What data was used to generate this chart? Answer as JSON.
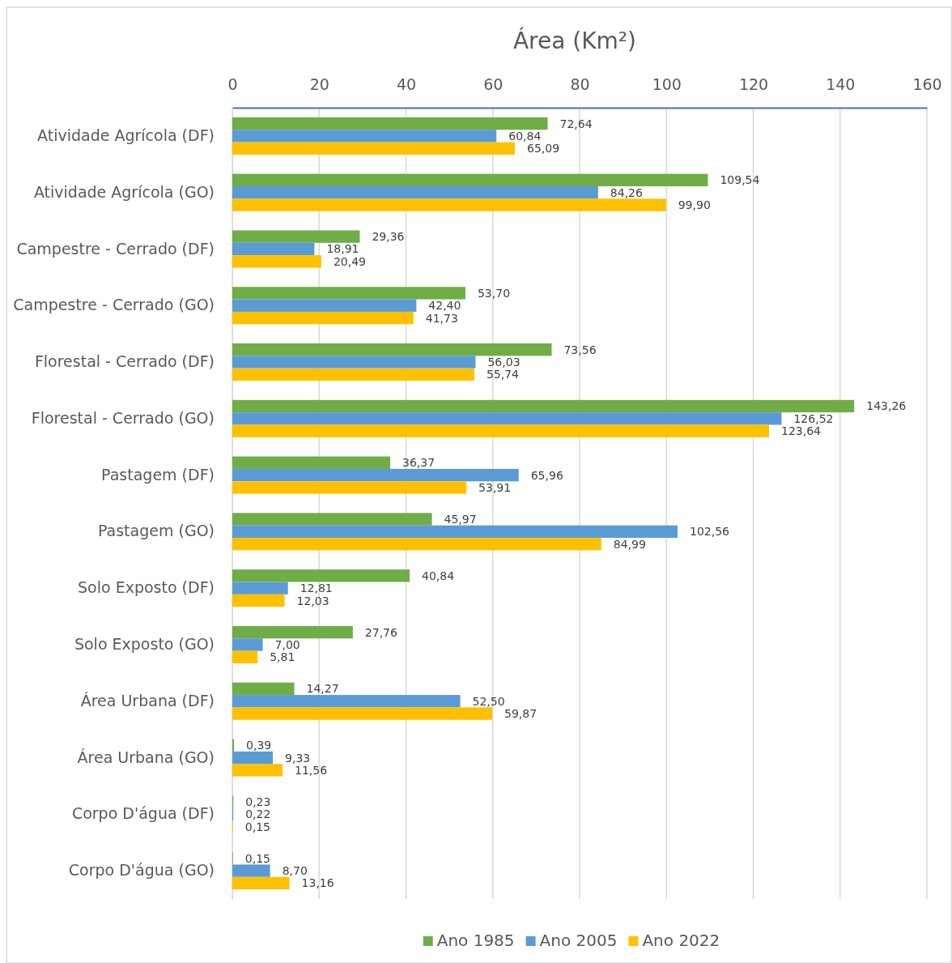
{
  "chart_data": {
    "type": "bar",
    "orientation": "horizontal",
    "title": "Área (Km²)",
    "categories": [
      "Atividade Agrícola (DF)",
      "Atividade Agrícola (GO)",
      "Campestre - Cerrado (DF)",
      "Campestre - Cerrado (GO)",
      "Florestal - Cerrado (DF)",
      "Florestal - Cerrado (GO)",
      "Pastagem (DF)",
      "Pastagem (GO)",
      "Solo Exposto (DF)",
      "Solo Exposto (GO)",
      "Área Urbana (DF)",
      "Área Urbana (GO)",
      "Corpo D'água (DF)",
      "Corpo D'água (GO)"
    ],
    "series": [
      {
        "name": "Ano 1985",
        "color": "#70ad47",
        "values": [
          72.64,
          109.54,
          29.36,
          53.7,
          73.56,
          143.26,
          36.37,
          45.97,
          40.84,
          27.76,
          14.27,
          0.39,
          0.23,
          0.15
        ],
        "value_labels": [
          "72,64",
          "109,54",
          "29,36",
          "53,70",
          "73,56",
          "143,26",
          "36,37",
          "45,97",
          "40,84",
          "27,76",
          "14,27",
          "0,39",
          "0,23",
          "0,15"
        ]
      },
      {
        "name": "Ano 2005",
        "color": "#5b9bd5",
        "values": [
          60.84,
          84.26,
          18.91,
          42.4,
          56.03,
          126.52,
          65.96,
          102.56,
          12.81,
          7.0,
          52.5,
          9.33,
          0.22,
          8.7
        ],
        "value_labels": [
          "60,84",
          "84,26",
          "18,91",
          "42,40",
          "56,03",
          "126,52",
          "65,96",
          "102,56",
          "12,81",
          "7,00",
          "52,50",
          "9,33",
          "0,22",
          "8,70"
        ]
      },
      {
        "name": "Ano 2022",
        "color": "#ffc000",
        "values": [
          65.09,
          99.9,
          20.49,
          41.73,
          55.74,
          123.64,
          53.91,
          84.99,
          12.03,
          5.81,
          59.87,
          11.56,
          0.15,
          13.16
        ],
        "value_labels": [
          "65,09",
          "99,90",
          "20,49",
          "41,73",
          "55,74",
          "123,64",
          "53,91",
          "84,99",
          "12,03",
          "5,81",
          "59,87",
          "11,56",
          "0,15",
          "13,16"
        ]
      }
    ],
    "xlim": [
      0,
      160
    ],
    "xticks": [
      0,
      20,
      40,
      60,
      80,
      100,
      120,
      140,
      160
    ],
    "grid": "x",
    "legend": "bottom"
  }
}
